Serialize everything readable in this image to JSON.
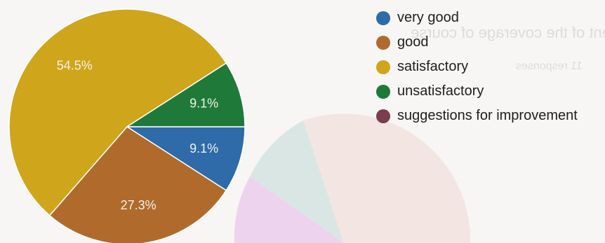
{
  "chart_data": {
    "type": "pie",
    "title": "",
    "slices": [
      {
        "label": "very good",
        "value": 9.1,
        "value_label": "9.1%",
        "color": "#2e6ba8"
      },
      {
        "label": "good",
        "value": 27.3,
        "value_label": "27.3%",
        "color": "#b06a2c"
      },
      {
        "label": "satisfactory",
        "value": 54.5,
        "value_label": "54.5%",
        "color": "#cfa51b"
      },
      {
        "label": "unsatisfactory",
        "value": 9.1,
        "value_label": "9.1%",
        "color": "#1f7a3a"
      },
      {
        "label": "suggestions for improvement",
        "value": 0,
        "value_label": "",
        "color": "#7b3e4e"
      }
    ],
    "legend_position": "right"
  }
}
